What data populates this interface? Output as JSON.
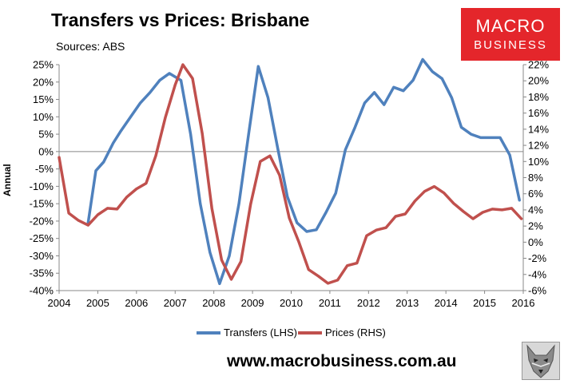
{
  "header": {
    "title": "Transfers vs Prices: Brisbane",
    "subtitle": "Sources: ABS"
  },
  "logo": {
    "line1": "MACRO",
    "line2": "BUSINESS",
    "color": "#e4262b"
  },
  "footer": {
    "url": "www.macrobusiness.com.au"
  },
  "chart_data": {
    "type": "line",
    "ylabel": "Annual",
    "x_ticks": [
      "2004",
      "2005",
      "2006",
      "2007",
      "2008",
      "2009",
      "2010",
      "2011",
      "2012",
      "2013",
      "2014",
      "2015",
      "2016"
    ],
    "xlim": [
      2004,
      2016
    ],
    "ylim_left": [
      -40,
      25
    ],
    "ylim_right": [
      -6,
      22
    ],
    "left_ticks": [
      "-40%",
      "-35%",
      "-30%",
      "-25%",
      "-20%",
      "-15%",
      "-10%",
      "-5%",
      "0%",
      "5%",
      "10%",
      "15%",
      "20%",
      "25%"
    ],
    "right_ticks": [
      "-6%",
      "-4%",
      "-2%",
      "0%",
      "2%",
      "4%",
      "6%",
      "8%",
      "10%",
      "12%",
      "14%",
      "16%",
      "18%",
      "20%",
      "22%"
    ],
    "legend_position": "bottom",
    "grid": false,
    "series": [
      {
        "name": "Transfers (LHS)",
        "axis": "left",
        "color": "#4f81bd",
        "points": [
          [
            2004.75,
            -20.5
          ],
          [
            2004.95,
            -5.5
          ],
          [
            2005.15,
            -3
          ],
          [
            2005.4,
            2.5
          ],
          [
            2005.6,
            6
          ],
          [
            2005.85,
            10
          ],
          [
            2006.1,
            14
          ],
          [
            2006.35,
            17
          ],
          [
            2006.6,
            20.5
          ],
          [
            2006.85,
            22.5
          ],
          [
            2007.15,
            20.5
          ],
          [
            2007.4,
            5
          ],
          [
            2007.65,
            -15
          ],
          [
            2007.9,
            -29
          ],
          [
            2008.15,
            -38
          ],
          [
            2008.4,
            -30
          ],
          [
            2008.65,
            -15
          ],
          [
            2008.9,
            5
          ],
          [
            2009.15,
            24.5
          ],
          [
            2009.4,
            15.5
          ],
          [
            2009.65,
            1
          ],
          [
            2009.9,
            -13
          ],
          [
            2010.15,
            -20.5
          ],
          [
            2010.4,
            -23
          ],
          [
            2010.65,
            -22.5
          ],
          [
            2010.9,
            -17.5
          ],
          [
            2011.15,
            -12
          ],
          [
            2011.4,
            0.5
          ],
          [
            2011.65,
            7
          ],
          [
            2011.9,
            14
          ],
          [
            2012.15,
            17
          ],
          [
            2012.4,
            13.5
          ],
          [
            2012.65,
            18.5
          ],
          [
            2012.9,
            17.5
          ],
          [
            2013.15,
            20.5
          ],
          [
            2013.4,
            26.5
          ],
          [
            2013.65,
            23
          ],
          [
            2013.9,
            21
          ],
          [
            2014.15,
            15.5
          ],
          [
            2014.4,
            7
          ],
          [
            2014.65,
            5
          ],
          [
            2014.9,
            4
          ],
          [
            2015.15,
            4
          ],
          [
            2015.4,
            4
          ],
          [
            2015.65,
            -1
          ],
          [
            2015.9,
            -14
          ]
        ]
      },
      {
        "name": "Prices (RHS)",
        "axis": "right",
        "color": "#c0504d",
        "points": [
          [
            2004.0,
            10.5
          ],
          [
            2004.25,
            3.6
          ],
          [
            2004.5,
            2.7
          ],
          [
            2004.75,
            2.1
          ],
          [
            2005.0,
            3.4
          ],
          [
            2005.25,
            4.2
          ],
          [
            2005.5,
            4.1
          ],
          [
            2005.75,
            5.6
          ],
          [
            2006.0,
            6.6
          ],
          [
            2006.25,
            7.3
          ],
          [
            2006.5,
            10.7
          ],
          [
            2006.75,
            15.5
          ],
          [
            2007.0,
            19.5
          ],
          [
            2007.2,
            22.0
          ],
          [
            2007.45,
            20.3
          ],
          [
            2007.7,
            13.5
          ],
          [
            2007.95,
            4.2
          ],
          [
            2008.2,
            -2.2
          ],
          [
            2008.45,
            -4.6
          ],
          [
            2008.7,
            -2.4
          ],
          [
            2008.95,
            4.7
          ],
          [
            2009.2,
            10.0
          ],
          [
            2009.45,
            10.7
          ],
          [
            2009.7,
            8.3
          ],
          [
            2009.95,
            3.0
          ],
          [
            2010.2,
            0.0
          ],
          [
            2010.45,
            -3.4
          ],
          [
            2010.7,
            -4.2
          ],
          [
            2010.95,
            -5.1
          ],
          [
            2011.2,
            -4.7
          ],
          [
            2011.45,
            -2.9
          ],
          [
            2011.7,
            -2.6
          ],
          [
            2011.95,
            0.8
          ],
          [
            2012.2,
            1.5
          ],
          [
            2012.45,
            1.8
          ],
          [
            2012.7,
            3.2
          ],
          [
            2012.95,
            3.5
          ],
          [
            2013.2,
            5.1
          ],
          [
            2013.45,
            6.3
          ],
          [
            2013.7,
            6.9
          ],
          [
            2013.95,
            6.1
          ],
          [
            2014.2,
            4.8
          ],
          [
            2014.45,
            3.8
          ],
          [
            2014.7,
            2.9
          ],
          [
            2014.95,
            3.7
          ],
          [
            2015.2,
            4.1
          ],
          [
            2015.45,
            4.0
          ],
          [
            2015.7,
            4.2
          ],
          [
            2015.95,
            2.9
          ]
        ]
      }
    ]
  }
}
